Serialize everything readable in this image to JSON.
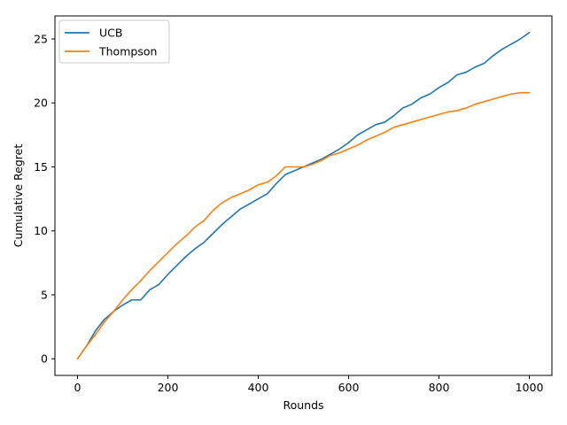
{
  "chart_data": {
    "type": "line",
    "title": "",
    "xlabel": "Rounds",
    "ylabel": "Cumulative Regret",
    "xlim": [
      -50,
      1050
    ],
    "ylim": [
      -1.3,
      26.8
    ],
    "xticks": [
      0,
      200,
      400,
      600,
      800,
      1000
    ],
    "yticks": [
      0,
      5,
      10,
      15,
      20,
      25
    ],
    "grid": false,
    "legend": "top-left",
    "series": [
      {
        "name": "UCB",
        "color": "#1f77b4",
        "x": [
          0,
          20,
          40,
          60,
          80,
          100,
          120,
          140,
          160,
          180,
          200,
          220,
          240,
          260,
          280,
          300,
          320,
          340,
          360,
          380,
          400,
          420,
          440,
          460,
          480,
          500,
          520,
          540,
          560,
          580,
          600,
          620,
          640,
          660,
          680,
          700,
          720,
          740,
          760,
          780,
          800,
          820,
          840,
          860,
          880,
          900,
          920,
          940,
          960,
          980,
          1000
        ],
        "y": [
          0,
          1.0,
          2.2,
          3.1,
          3.7,
          4.2,
          4.6,
          4.6,
          5.4,
          5.8,
          6.6,
          7.3,
          8.0,
          8.6,
          9.1,
          9.8,
          10.5,
          11.1,
          11.7,
          12.1,
          12.5,
          12.9,
          13.7,
          14.4,
          14.7,
          15.0,
          15.3,
          15.6,
          16.0,
          16.4,
          16.9,
          17.5,
          17.9,
          18.3,
          18.5,
          19.0,
          19.6,
          19.9,
          20.4,
          20.7,
          21.2,
          21.6,
          22.2,
          22.4,
          22.8,
          23.1,
          23.7,
          24.2,
          24.6,
          25.0,
          25.5
        ]
      },
      {
        "name": "Thompson",
        "color": "#ff7f0e",
        "x": [
          0,
          20,
          40,
          60,
          80,
          100,
          120,
          140,
          160,
          180,
          200,
          220,
          240,
          260,
          280,
          300,
          320,
          340,
          360,
          380,
          400,
          420,
          440,
          460,
          480,
          500,
          520,
          540,
          560,
          580,
          600,
          620,
          640,
          660,
          680,
          700,
          720,
          740,
          760,
          780,
          800,
          820,
          840,
          860,
          880,
          900,
          920,
          940,
          960,
          980,
          1000
        ],
        "y": [
          0,
          1.0,
          1.9,
          2.9,
          3.7,
          4.6,
          5.4,
          6.1,
          6.9,
          7.6,
          8.3,
          9.0,
          9.6,
          10.3,
          10.8,
          11.6,
          12.2,
          12.6,
          12.9,
          13.2,
          13.6,
          13.8,
          14.3,
          15.0,
          15.0,
          15.0,
          15.2,
          15.5,
          15.9,
          16.1,
          16.4,
          16.7,
          17.1,
          17.4,
          17.7,
          18.1,
          18.3,
          18.5,
          18.7,
          18.9,
          19.1,
          19.3,
          19.4,
          19.6,
          19.9,
          20.1,
          20.3,
          20.5,
          20.7,
          20.8,
          20.8
        ]
      }
    ]
  }
}
